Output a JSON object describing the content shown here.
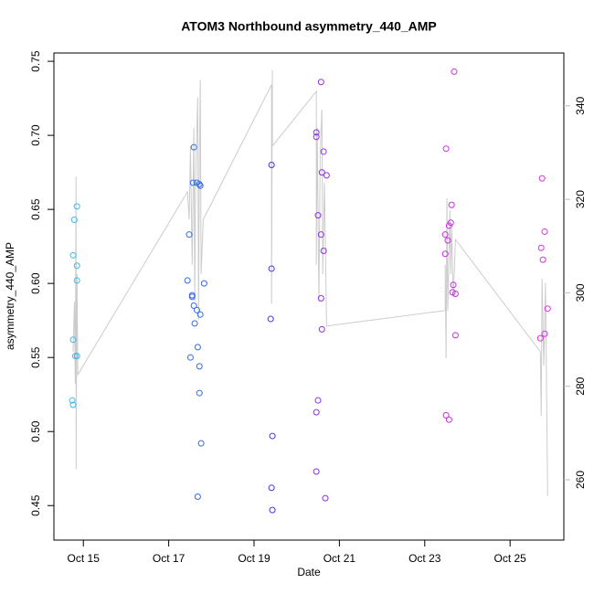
{
  "chart_data": {
    "type": "scatter",
    "title": "ATOM3 Northbound asymmetry_440_AMP",
    "xlabel": "Date",
    "ylabel": "asymmetry_440_AMP",
    "xlim": [
      14.31,
      26.26
    ],
    "xticks": [
      {
        "value": 15,
        "label": "Oct 15"
      },
      {
        "value": 17,
        "label": "Oct 17"
      },
      {
        "value": 19,
        "label": "Oct 19"
      },
      {
        "value": 21,
        "label": "Oct 21"
      },
      {
        "value": 23,
        "label": "Oct 23"
      },
      {
        "value": 25,
        "label": "Oct 25"
      }
    ],
    "ylim": [
      0.4267,
      0.7556
    ],
    "yticks": [
      0.45,
      {
        "value": 0.5,
        "label": "0.50"
      },
      0.55,
      {
        "value": 0.6,
        "label": "0.60"
      },
      0.65,
      {
        "value": 0.7,
        "label": "0.70"
      },
      0.75
    ],
    "y2lim": [
      247.1,
      351.3
    ],
    "y2ticks": [
      260,
      280,
      300,
      320,
      340
    ],
    "y2color": "#bdbdbd",
    "series": [
      {
        "type": "scatter",
        "x": [
          14.74,
          14.76,
          14.76,
          14.81,
          14.85,
          14.76,
          14.79,
          14.85,
          14.85,
          14.85,
          17.48,
          17.57,
          17.59,
          17.66,
          17.72,
          17.74,
          17.44,
          17.55,
          17.55,
          17.59,
          17.66,
          17.74,
          17.61,
          17.68,
          17.83,
          17.51,
          17.72,
          17.72,
          17.76,
          17.68,
          19.41,
          19.41,
          19.39,
          19.43,
          19.41,
          19.43,
          20.46,
          20.46,
          20.57,
          20.59,
          20.63,
          20.7,
          20.5,
          20.57,
          20.63,
          20.57,
          20.59,
          20.5,
          20.46,
          20.46,
          20.67,
          23.69,
          23.5,
          23.63,
          23.61,
          23.57,
          23.48,
          23.54,
          23.48,
          23.67,
          23.65,
          23.72,
          23.72,
          23.5,
          23.57,
          25.75,
          25.81,
          25.73,
          25.77,
          25.88,
          25.81,
          25.71
        ],
        "values": [
          0.521,
          0.518,
          0.562,
          0.551,
          0.551,
          0.619,
          0.643,
          0.652,
          0.612,
          0.602,
          0.633,
          0.668,
          0.692,
          0.668,
          0.667,
          0.666,
          0.602,
          0.591,
          0.592,
          0.585,
          0.582,
          0.579,
          0.573,
          0.557,
          0.6,
          0.55,
          0.544,
          0.526,
          0.492,
          0.456,
          0.68,
          0.61,
          0.576,
          0.497,
          0.462,
          0.447,
          0.702,
          0.699,
          0.736,
          0.675,
          0.689,
          0.673,
          0.646,
          0.633,
          0.622,
          0.59,
          0.569,
          0.521,
          0.513,
          0.473,
          0.455,
          0.743,
          0.691,
          0.653,
          0.641,
          0.639,
          0.633,
          0.629,
          0.62,
          0.599,
          0.594,
          0.593,
          0.565,
          0.511,
          0.508,
          0.671,
          0.635,
          0.624,
          0.616,
          0.583,
          0.566,
          0.563
        ],
        "colors": [
          "#40b8e8",
          "#40b8e8",
          "#40b8e8",
          "#40b8e8",
          "#40b8e8",
          "#40b8e8",
          "#40b8e8",
          "#40b8e8",
          "#40b8e8",
          "#40b8e8",
          "#2f6ae8",
          "#2f6ae8",
          "#2f6ae8",
          "#2f6ae8",
          "#2f6ae8",
          "#2f6ae8",
          "#2f6ae8",
          "#2f6ae8",
          "#2f6ae8",
          "#2f6ae8",
          "#2f6ae8",
          "#2f6ae8",
          "#2f6ae8",
          "#2f6ae8",
          "#2f6ae8",
          "#2f6ae8",
          "#2f6ae8",
          "#2f6ae8",
          "#2f6ae8",
          "#2f6ae8",
          "#4a30e0",
          "#4a30e0",
          "#4a30e0",
          "#4a30e0",
          "#4a30e0",
          "#4a30e0",
          "#9030e0",
          "#9030e0",
          "#9030e0",
          "#9030e0",
          "#9030e0",
          "#9030e0",
          "#9030e0",
          "#9030e0",
          "#9030e0",
          "#9030e0",
          "#9030e0",
          "#9030e0",
          "#9030e0",
          "#9030e0",
          "#9030e0",
          "#c830e0",
          "#c830e0",
          "#c830e0",
          "#c830e0",
          "#c830e0",
          "#c830e0",
          "#c830e0",
          "#c830e0",
          "#c830e0",
          "#c830e0",
          "#c830e0",
          "#c830e0",
          "#c830e0",
          "#c830e0",
          "#e030e0",
          "#e030e0",
          "#e030e0",
          "#e030e0",
          "#e030e0",
          "#e030e0",
          "#e030e0"
        ]
      },
      {
        "type": "line",
        "axis": "y2",
        "color": "#cccccc",
        "x": [
          14.76,
          14.79,
          14.81,
          14.83,
          14.83,
          14.85,
          14.87,
          17.44,
          17.48,
          17.51,
          17.55,
          17.59,
          17.61,
          17.63,
          17.68,
          17.7,
          17.72,
          17.74,
          17.76,
          17.81,
          19.41,
          19.41,
          19.43,
          19.43,
          20.46,
          20.46,
          20.48,
          20.52,
          20.55,
          20.59,
          20.61,
          20.65,
          20.7,
          23.48,
          23.48,
          23.5,
          23.52,
          23.54,
          23.59,
          23.61,
          23.63,
          23.67,
          23.72,
          25.71,
          25.73,
          25.75,
          25.79,
          25.83,
          25.88
        ],
        "values": [
          287.4,
          298.1,
          280.5,
          324.9,
          262.3,
          304.0,
          282.5,
          321.6,
          315.7,
          331.4,
          306.0,
          335.3,
          298.1,
          323.6,
          341.8,
          294.2,
          329.4,
          345.5,
          304.0,
          315.7,
          344.5,
          297.6,
          347.6,
          331.4,
          343.1,
          306.0,
          335.3,
          298.1,
          329.4,
          339.2,
          304.0,
          323.6,
          292.9,
          296.2,
          306.0,
          286.0,
          320.2,
          296.2,
          317.7,
          304.0,
          313.8,
          299.1,
          311.4,
          287.4,
          273.7,
          303.0,
          284.4,
          302.1,
          256.5
        ]
      }
    ]
  }
}
